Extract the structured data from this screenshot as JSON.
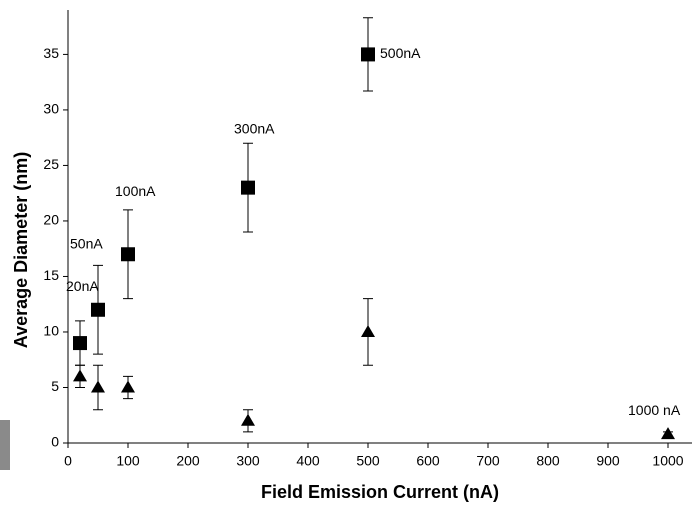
{
  "chart_data": {
    "type": "scatter",
    "x_label": "Field Emission Current (nA)",
    "y_label": "Average Diameter (nm)",
    "xlim": [
      0,
      1040
    ],
    "xticks": [
      0,
      100,
      200,
      300,
      400,
      500,
      600,
      700,
      800,
      900,
      1000
    ],
    "ylim": [
      0,
      39
    ],
    "yticks": [
      0,
      5,
      10,
      15,
      20,
      25,
      30,
      35
    ],
    "series": [
      {
        "marker": "square",
        "color": "#000000",
        "x": [
          20,
          50,
          100,
          300,
          500
        ],
        "values": [
          9,
          12,
          17,
          23,
          35
        ],
        "errors": [
          2,
          4,
          4,
          4,
          3.3
        ],
        "labels": [
          "20nA",
          "50nA",
          "100nA",
          "300nA",
          "500nA"
        ]
      },
      {
        "marker": "triangle",
        "color": "#000000",
        "x": [
          20,
          50,
          100,
          300,
          500,
          1000
        ],
        "values": [
          6,
          5,
          5,
          2,
          10,
          0.8
        ],
        "errors": [
          1,
          2,
          1,
          1,
          3,
          0.2
        ],
        "labels": [
          null,
          null,
          null,
          null,
          null,
          "1000 nA"
        ]
      }
    ]
  }
}
